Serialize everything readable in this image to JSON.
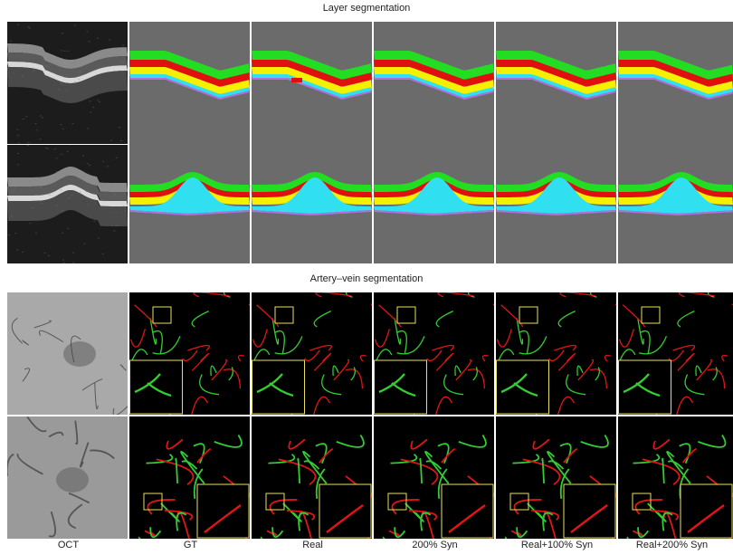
{
  "figure": {
    "section_titles": {
      "layer": "Layer segmentation",
      "av": "Artery–vein segmentation"
    },
    "columns": [
      "OCT",
      "GT",
      "Real",
      "200% Syn",
      "Real+100% Syn",
      "Real+200% Syn"
    ]
  },
  "colors": {
    "seg_background": "#6b6b6b",
    "layer_green": "#22dd22",
    "layer_red": "#e01010",
    "layer_yellow": "#f5f000",
    "layer_cyan": "#30e0f0",
    "layer_purple": "#b070e0",
    "artery": "#e01515",
    "vein": "#33cc33",
    "zoom_box": "#e8e05a"
  }
}
